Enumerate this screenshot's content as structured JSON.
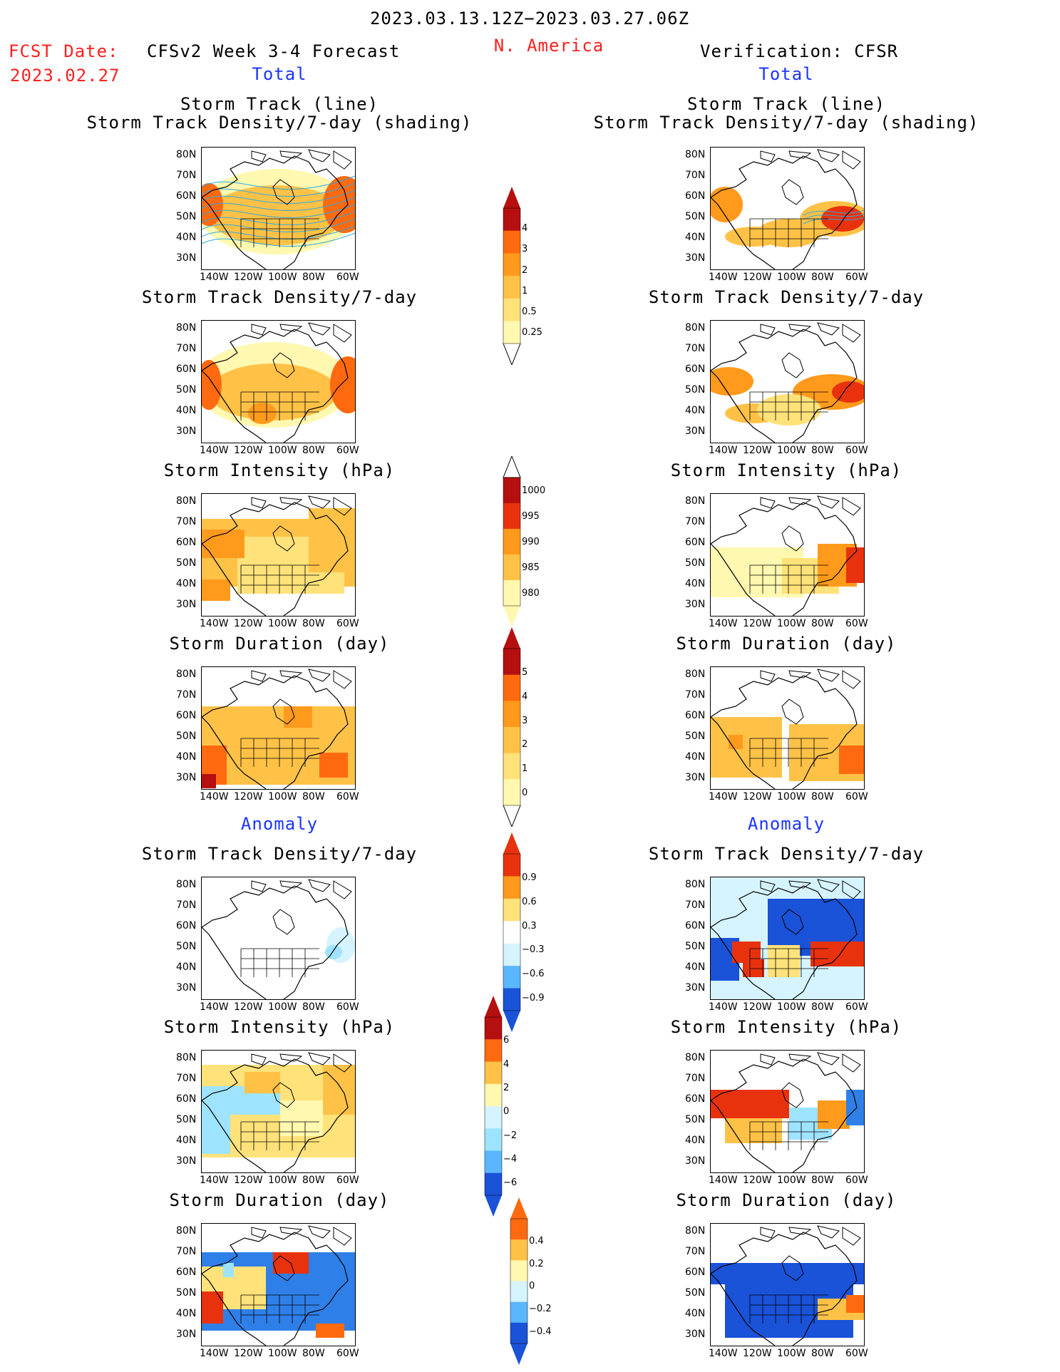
{
  "header": {
    "date_range": "2023.03.13.12Z−2023.03.27.06Z",
    "fcst_label": "FCST Date:",
    "fcst_date": "2023.02.27",
    "model_title": "CFSv2 Week 3-4 Forecast",
    "region": "N. America",
    "verification": "Verification: CFSR",
    "total_left": "Total",
    "total_right": "Total",
    "anomaly_left": "Anomaly",
    "anomaly_right": "Anomaly"
  },
  "panel_titles": {
    "track_line": "Storm Track (line)",
    "track_shading": "Storm Track Density/7-day (shading)",
    "density": "Storm Track Density/7-day",
    "intensity": "Storm Intensity (hPa)",
    "duration": "Storm Duration (day)"
  },
  "axes": {
    "lat_labels": [
      "80N",
      "70N",
      "60N",
      "50N",
      "40N",
      "30N"
    ],
    "lon_labels": [
      "140W",
      "120W",
      "100W",
      "80W",
      "60W"
    ]
  },
  "colorbars": [
    {
      "id": "density_total",
      "labels": [
        "4",
        "3",
        "2",
        "1",
        "0.5",
        "0.25"
      ]
    },
    {
      "id": "intensity_total",
      "labels": [
        "1000",
        "995",
        "990",
        "985",
        "980"
      ]
    },
    {
      "id": "duration_total",
      "labels": [
        "5",
        "4",
        "3",
        "2",
        "1",
        "0"
      ]
    },
    {
      "id": "density_anom",
      "labels": [
        "0.9",
        "0.6",
        "0.3",
        "−0.3",
        "−0.6",
        "−0.9"
      ]
    },
    {
      "id": "intensity_anom",
      "labels": [
        "6",
        "4",
        "2",
        "0",
        "−2",
        "−4",
        "−6"
      ]
    },
    {
      "id": "duration_anom",
      "labels": [
        "0.4",
        "0.2",
        "0",
        "−0.2",
        "−0.4"
      ]
    }
  ],
  "colors": {
    "warm": [
      "#fff8b0",
      "#ffe27a",
      "#ffc247",
      "#ff9a1c",
      "#ff6a10",
      "#e8320e",
      "#b50f0f"
    ],
    "cool": [
      "#d6f4ff",
      "#9ee3ff",
      "#5ab7ff",
      "#2f7fe8",
      "#1a52d8"
    ],
    "header_red": "#ff2020",
    "header_blue": "#1a35ff",
    "track_line": "#2aa8e0"
  }
}
